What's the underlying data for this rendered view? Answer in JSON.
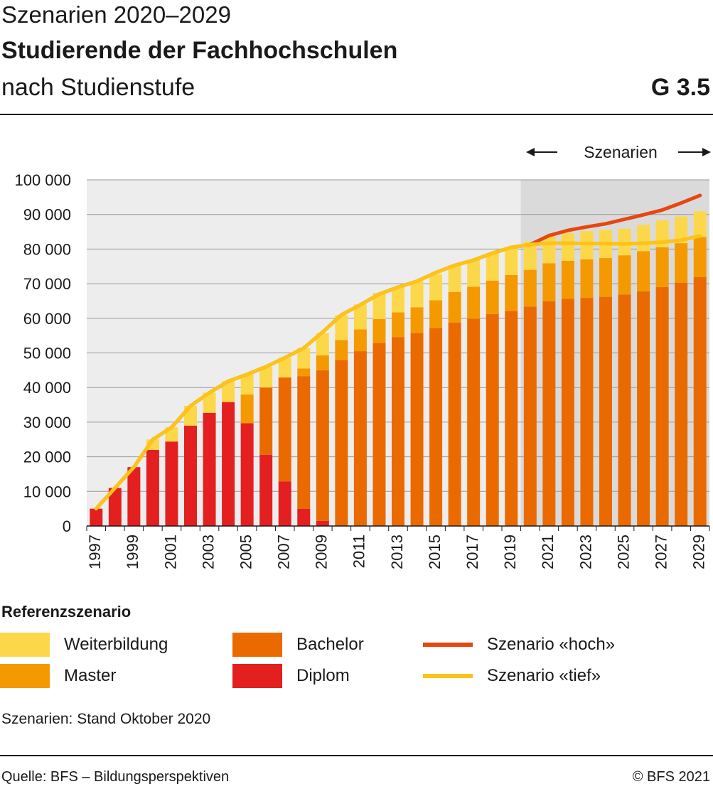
{
  "header": {
    "line1": "Szenarien 2020–2029",
    "line2": "Studierende der Fachhochschulen",
    "line3": "nach Studienstufe",
    "code": "G 3.5"
  },
  "footer": {
    "note": "Szenarien: Stand Oktober 2020",
    "source": "Quelle: BFS – Bildungsperspektiven",
    "copyright": "© BFS 2021"
  },
  "colors": {
    "weiterbildung": "#fdd74a",
    "master": "#f49a00",
    "bachelor": "#ea6a00",
    "diplom": "#e3201f",
    "hoch": "#e64612",
    "tief": "#fcc318",
    "plot_bg_hist": "#ededed",
    "plot_bg_scen": "#dadada",
    "grid": "#9a9a9a"
  },
  "legend": {
    "title": "Referenzszenario",
    "items": [
      {
        "label": "Weiterbildung",
        "kind": "bar",
        "color": "#fdd74a"
      },
      {
        "label": "Master",
        "kind": "bar",
        "color": "#f49a00"
      },
      {
        "label": "Bachelor",
        "kind": "bar",
        "color": "#ea6a00"
      },
      {
        "label": "Diplom",
        "kind": "bar",
        "color": "#e3201f"
      },
      {
        "label": "Szenario «hoch»",
        "kind": "line",
        "color": "#e64612"
      },
      {
        "label": "Szenario «tief»",
        "kind": "line",
        "color": "#fcc318"
      }
    ]
  },
  "chart_data": {
    "type": "bar",
    "stacked": true,
    "scenario_label": "Szenarien",
    "scenario_start": 2020,
    "categories": [
      1997,
      1998,
      1999,
      2000,
      2001,
      2002,
      2003,
      2004,
      2005,
      2006,
      2007,
      2008,
      2009,
      2010,
      2011,
      2012,
      2013,
      2014,
      2015,
      2016,
      2017,
      2018,
      2019,
      2020,
      2021,
      2022,
      2023,
      2024,
      2025,
      2026,
      2027,
      2028,
      2029
    ],
    "x_tick_labels": [
      "1997",
      "1999",
      "2001",
      "2003",
      "2005",
      "2007",
      "2009",
      "2011",
      "2013",
      "2015",
      "2017",
      "2019",
      "2021",
      "2023",
      "2025",
      "2027",
      "2029"
    ],
    "ylim": [
      0,
      100000
    ],
    "y_tick_labels": [
      "0",
      "10 000",
      "20 000",
      "30 000",
      "40 000",
      "50 000",
      "60 000",
      "70 000",
      "80 000",
      "90 000",
      "100 000"
    ],
    "y_ticks": [
      0,
      10000,
      20000,
      30000,
      40000,
      50000,
      60000,
      70000,
      80000,
      90000,
      100000
    ],
    "grid": true,
    "series": [
      {
        "name": "Diplom",
        "values": [
          5000,
          11000,
          17000,
          22000,
          24400,
          29000,
          32700,
          35800,
          29700,
          20600,
          12900,
          5000,
          1500,
          0,
          0,
          0,
          0,
          0,
          0,
          0,
          0,
          0,
          0,
          0,
          0,
          0,
          0,
          0,
          0,
          0,
          0,
          0,
          0
        ]
      },
      {
        "name": "Bachelor",
        "values": [
          0,
          0,
          0,
          0,
          0,
          0,
          0,
          0,
          0,
          19400,
          30000,
          38300,
          43500,
          48000,
          50500,
          52900,
          54600,
          55800,
          57200,
          58800,
          59900,
          61200,
          62100,
          63400,
          64900,
          65600,
          65900,
          66200,
          66900,
          67800,
          69000,
          70300,
          71900
        ]
      },
      {
        "name": "Master",
        "values": [
          0,
          0,
          0,
          0,
          0,
          0,
          0,
          0,
          8300,
          0,
          0,
          2200,
          4300,
          5700,
          6300,
          6900,
          7100,
          7400,
          8000,
          8800,
          9200,
          9700,
          10400,
          10600,
          11000,
          11000,
          11100,
          11200,
          11300,
          11600,
          11500,
          11400,
          11600
        ]
      },
      {
        "name": "Weiterbildung",
        "values": [
          0,
          0,
          0,
          3000,
          4100,
          5700,
          5800,
          6000,
          5800,
          6000,
          5700,
          5900,
          6400,
          7200,
          7200,
          7500,
          7300,
          7500,
          7500,
          7700,
          7700,
          7900,
          8000,
          8100,
          7900,
          8000,
          8200,
          8100,
          7700,
          7600,
          7800,
          7700,
          7400
        ]
      }
    ],
    "lines": [
      {
        "name": "Szenario «hoch»",
        "x": [
          1997,
          1998,
          1999,
          2000,
          2001,
          2002,
          2003,
          2004,
          2005,
          2006,
          2007,
          2008,
          2009,
          2010,
          2011,
          2012,
          2013,
          2014,
          2015,
          2016,
          2017,
          2018,
          2019,
          2020,
          2021,
          2022,
          2023,
          2024,
          2025,
          2026,
          2027,
          2028,
          2029
        ],
        "values": [
          5000,
          11000,
          17000,
          25000,
          28500,
          34700,
          38500,
          41800,
          43800,
          46000,
          48600,
          51400,
          56000,
          61000,
          63900,
          67000,
          69000,
          70700,
          73200,
          75300,
          76800,
          78800,
          80500,
          81300,
          83900,
          85400,
          86400,
          87300,
          88600,
          89900,
          91300,
          93300,
          95500
        ]
      },
      {
        "name": "Szenario «tief»",
        "x": [
          1997,
          1998,
          1999,
          2000,
          2001,
          2002,
          2003,
          2004,
          2005,
          2006,
          2007,
          2008,
          2009,
          2010,
          2011,
          2012,
          2013,
          2014,
          2015,
          2016,
          2017,
          2018,
          2019,
          2020,
          2021,
          2022,
          2023,
          2024,
          2025,
          2026,
          2027,
          2028,
          2029
        ],
        "values": [
          5000,
          11000,
          17000,
          25000,
          28500,
          34700,
          38500,
          41800,
          43800,
          46000,
          48600,
          51400,
          56000,
          61000,
          63900,
          67000,
          69000,
          70700,
          73200,
          75300,
          76800,
          78800,
          80500,
          81300,
          81700,
          81700,
          81600,
          81600,
          81500,
          81700,
          82000,
          82600,
          83800
        ]
      }
    ]
  }
}
